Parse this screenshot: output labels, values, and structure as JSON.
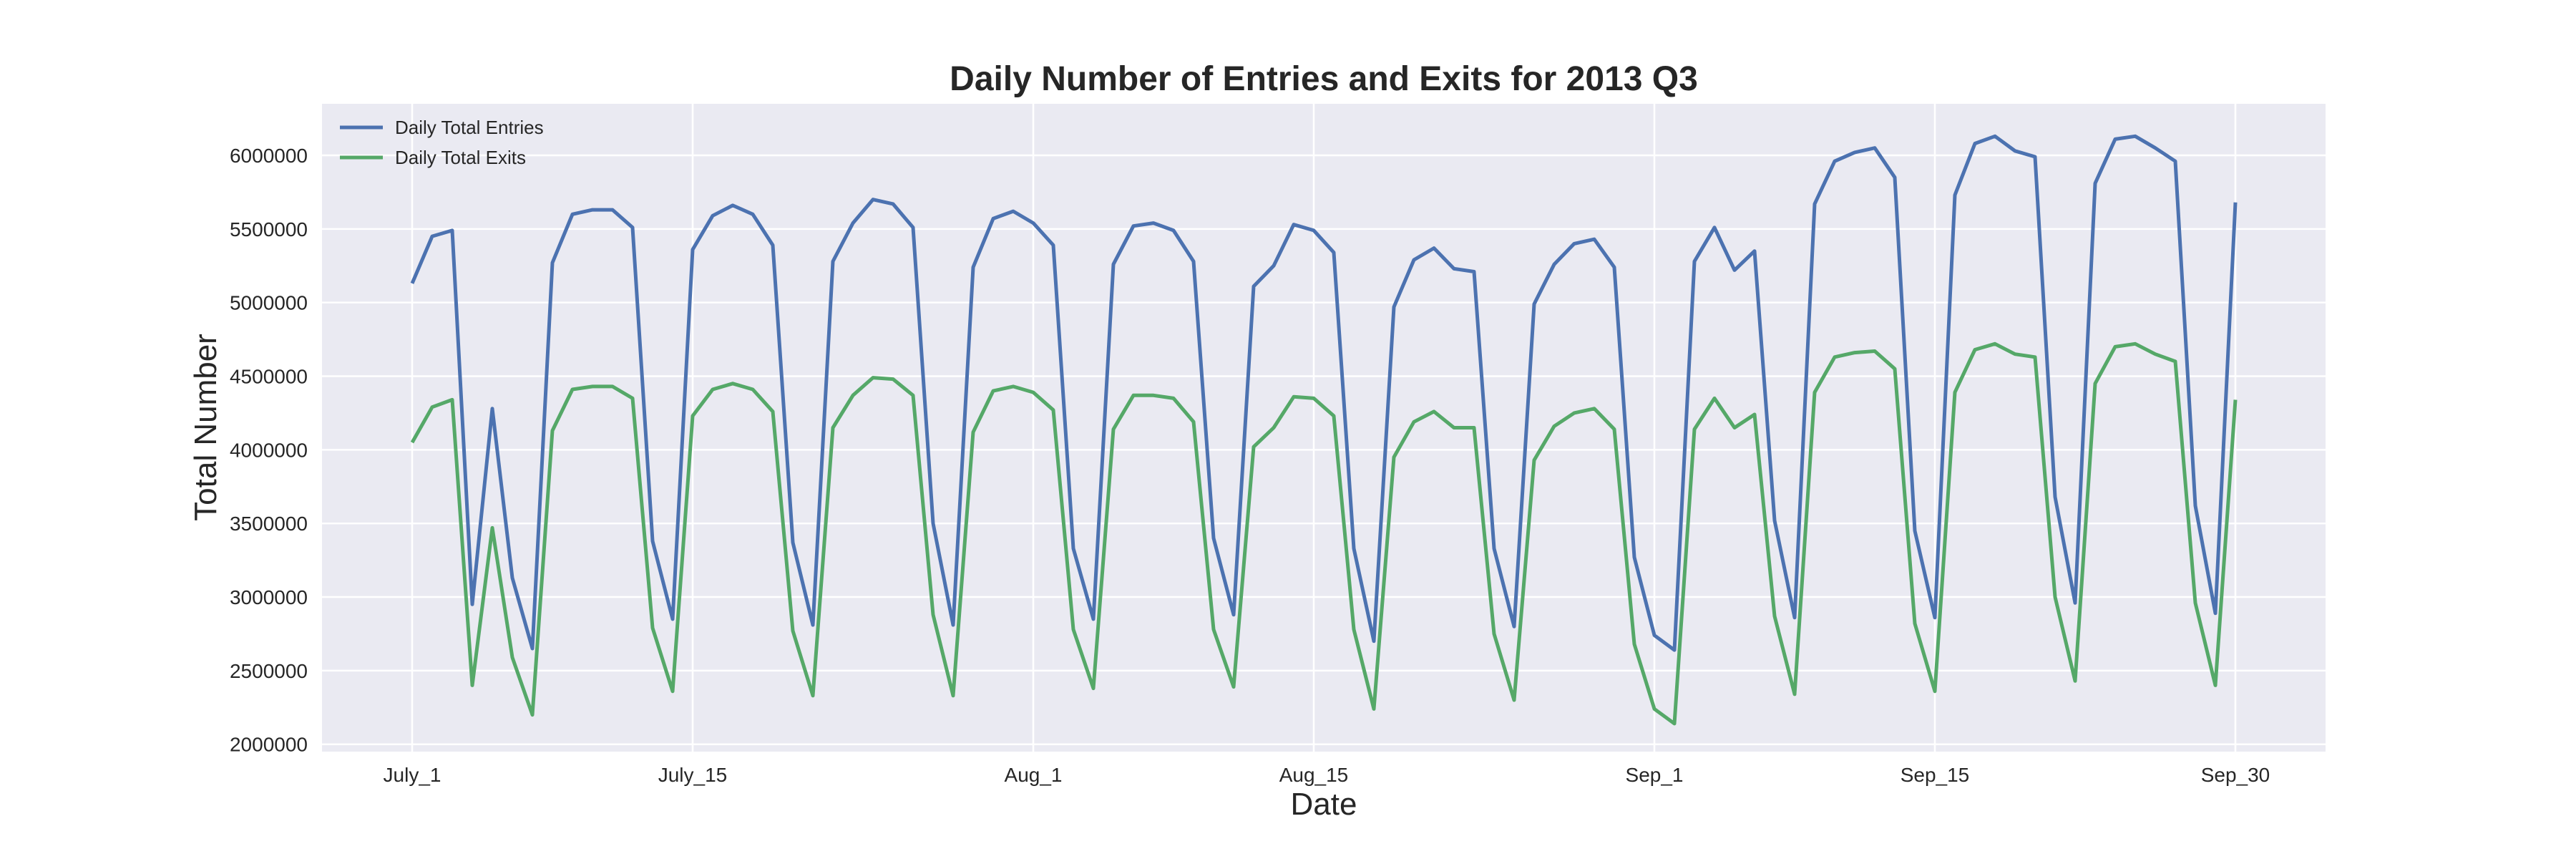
{
  "chart_data": {
    "type": "line",
    "title": "Daily Number of Entries and Exits for 2013 Q3",
    "xlabel": "Date",
    "ylabel": "Total Number",
    "ylim": [
      1950000,
      6350000
    ],
    "xlim": [
      -4.5,
      95.5
    ],
    "grid": true,
    "legend_position": "top-left",
    "y_ticks": [
      2000000,
      2500000,
      3000000,
      3500000,
      4000000,
      4500000,
      5000000,
      5500000,
      6000000
    ],
    "y_tick_labels": [
      "2000000",
      "2500000",
      "3000000",
      "3500000",
      "4000000",
      "4500000",
      "5000000",
      "5500000",
      "6000000"
    ],
    "x_ticks": [
      0,
      14,
      31,
      45,
      62,
      76,
      91
    ],
    "x_tick_labels": [
      "July_1",
      "July_15",
      "Aug_1",
      "Aug_15",
      "Sep_1",
      "Sep_15",
      "Sep_30"
    ],
    "x": [
      0,
      1,
      2,
      3,
      4,
      5,
      6,
      7,
      8,
      9,
      10,
      11,
      12,
      13,
      14,
      15,
      16,
      17,
      18,
      19,
      20,
      21,
      22,
      23,
      24,
      25,
      26,
      27,
      28,
      29,
      30,
      31,
      32,
      33,
      34,
      35,
      36,
      37,
      38,
      39,
      40,
      41,
      42,
      43,
      44,
      45,
      46,
      47,
      48,
      49,
      50,
      51,
      52,
      53,
      54,
      55,
      56,
      57,
      58,
      59,
      60,
      61,
      62,
      63,
      64,
      65,
      66,
      67,
      68,
      69,
      70,
      71,
      72,
      73,
      74,
      75,
      76,
      77,
      78,
      79,
      80,
      81,
      82,
      83,
      84,
      85,
      86,
      87,
      88,
      89,
      90,
      91
    ],
    "series": [
      {
        "name": "Daily Total Entries",
        "color": "#4c72b0",
        "values": [
          5130000,
          5450000,
          5490000,
          2950000,
          4280000,
          3130000,
          2650000,
          5270000,
          5600000,
          5630000,
          5630000,
          5510000,
          3380000,
          2850000,
          5360000,
          5590000,
          5660000,
          5600000,
          5390000,
          3370000,
          2810000,
          5280000,
          5540000,
          5700000,
          5670000,
          5510000,
          3500000,
          2810000,
          5240000,
          5570000,
          5620000,
          5540000,
          5390000,
          3330000,
          2850000,
          5260000,
          5520000,
          5540000,
          5490000,
          5280000,
          3400000,
          2880000,
          5110000,
          5250000,
          5530000,
          5490000,
          5340000,
          3330000,
          2700000,
          4970000,
          5290000,
          5370000,
          5230000,
          5210000,
          3330000,
          2800000,
          4990000,
          5260000,
          5400000,
          5430000,
          5240000,
          3270000,
          2740000,
          2640000,
          5280000,
          5510000,
          5220000,
          5350000,
          3520000,
          2860000,
          5670000,
          5960000,
          6020000,
          6050000,
          5850000,
          3450000,
          2860000,
          5730000,
          6080000,
          6130000,
          6030000,
          5990000,
          3680000,
          2960000,
          5810000,
          6110000,
          6130000,
          6050000,
          5960000,
          3620000,
          2890000,
          5680000
        ]
      },
      {
        "name": "Daily Total Exits",
        "color": "#55a868",
        "values": [
          4050000,
          4290000,
          4340000,
          2400000,
          3470000,
          2590000,
          2200000,
          4130000,
          4410000,
          4430000,
          4430000,
          4350000,
          2790000,
          2360000,
          4230000,
          4410000,
          4450000,
          4410000,
          4260000,
          2770000,
          2330000,
          4150000,
          4370000,
          4490000,
          4480000,
          4370000,
          2880000,
          2330000,
          4120000,
          4400000,
          4430000,
          4390000,
          4270000,
          2780000,
          2380000,
          4140000,
          4370000,
          4370000,
          4350000,
          4190000,
          2780000,
          2390000,
          4020000,
          4150000,
          4360000,
          4350000,
          4230000,
          2780000,
          2240000,
          3950000,
          4190000,
          4260000,
          4150000,
          4150000,
          2750000,
          2300000,
          3930000,
          4160000,
          4250000,
          4280000,
          4140000,
          2680000,
          2240000,
          2140000,
          4140000,
          4350000,
          4150000,
          4240000,
          2870000,
          2340000,
          4390000,
          4630000,
          4660000,
          4670000,
          4550000,
          2820000,
          2360000,
          4390000,
          4680000,
          4720000,
          4650000,
          4630000,
          3000000,
          2430000,
          4450000,
          4700000,
          4720000,
          4650000,
          4600000,
          2960000,
          2400000,
          4340000
        ]
      }
    ]
  }
}
